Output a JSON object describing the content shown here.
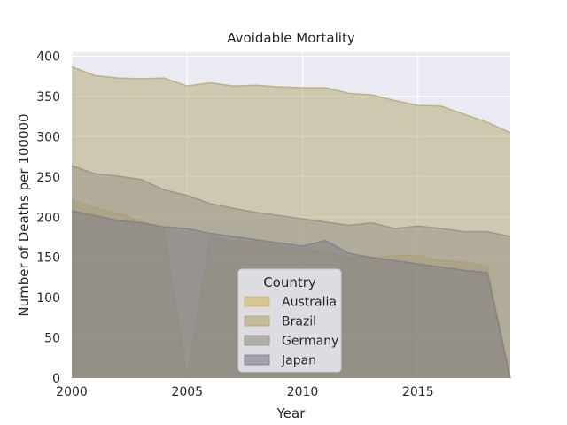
{
  "chart_data": {
    "type": "area",
    "title": "Avoidable Mortality",
    "xlabel": "Year",
    "ylabel": "Number of Deaths per 100000",
    "xlim": [
      2000,
      2019
    ],
    "ylim": [
      0,
      405
    ],
    "xticks": [
      2000,
      2005,
      2010,
      2015
    ],
    "yticks": [
      0,
      50,
      100,
      150,
      200,
      250,
      300,
      350,
      400
    ],
    "grid": true,
    "stacked": false,
    "legend": {
      "title": "Country",
      "position": "bottom-center"
    },
    "x": [
      2000,
      2001,
      2002,
      2003,
      2004,
      2005,
      2006,
      2007,
      2008,
      2009,
      2010,
      2011,
      2012,
      2013,
      2014,
      2015,
      2016,
      2017,
      2018,
      2019
    ],
    "series": [
      {
        "name": "Australia",
        "color": "#cfb862",
        "values": [
          221,
          212,
          205,
          195,
          186,
          0,
          176,
          170,
          170,
          165,
          160,
          157,
          150,
          150,
          152,
          152,
          146,
          144,
          139,
          0
        ]
      },
      {
        "name": "Brazil",
        "color": "#b2a56e",
        "values": [
          387,
          376,
          373,
          372,
          373,
          363,
          367,
          363,
          364,
          362,
          361,
          361,
          354,
          352,
          345,
          339,
          338,
          328,
          318,
          305
        ]
      },
      {
        "name": "Germany",
        "color": "#948d82",
        "values": [
          264,
          254,
          251,
          247,
          234,
          227,
          217,
          211,
          206,
          202,
          198,
          194,
          190,
          193,
          186,
          189,
          186,
          182,
          182,
          176
        ]
      },
      {
        "name": "Japan",
        "color": "#7c7b8a",
        "values": [
          208,
          202,
          196,
          193,
          188,
          186,
          180,
          176,
          172,
          168,
          164,
          171,
          155,
          150,
          146,
          142,
          138,
          134,
          131,
          0
        ]
      }
    ]
  },
  "style": {
    "plot_background": "#eaeaf2",
    "grid_color": "#ffffff",
    "series_opacity": 0.5
  }
}
